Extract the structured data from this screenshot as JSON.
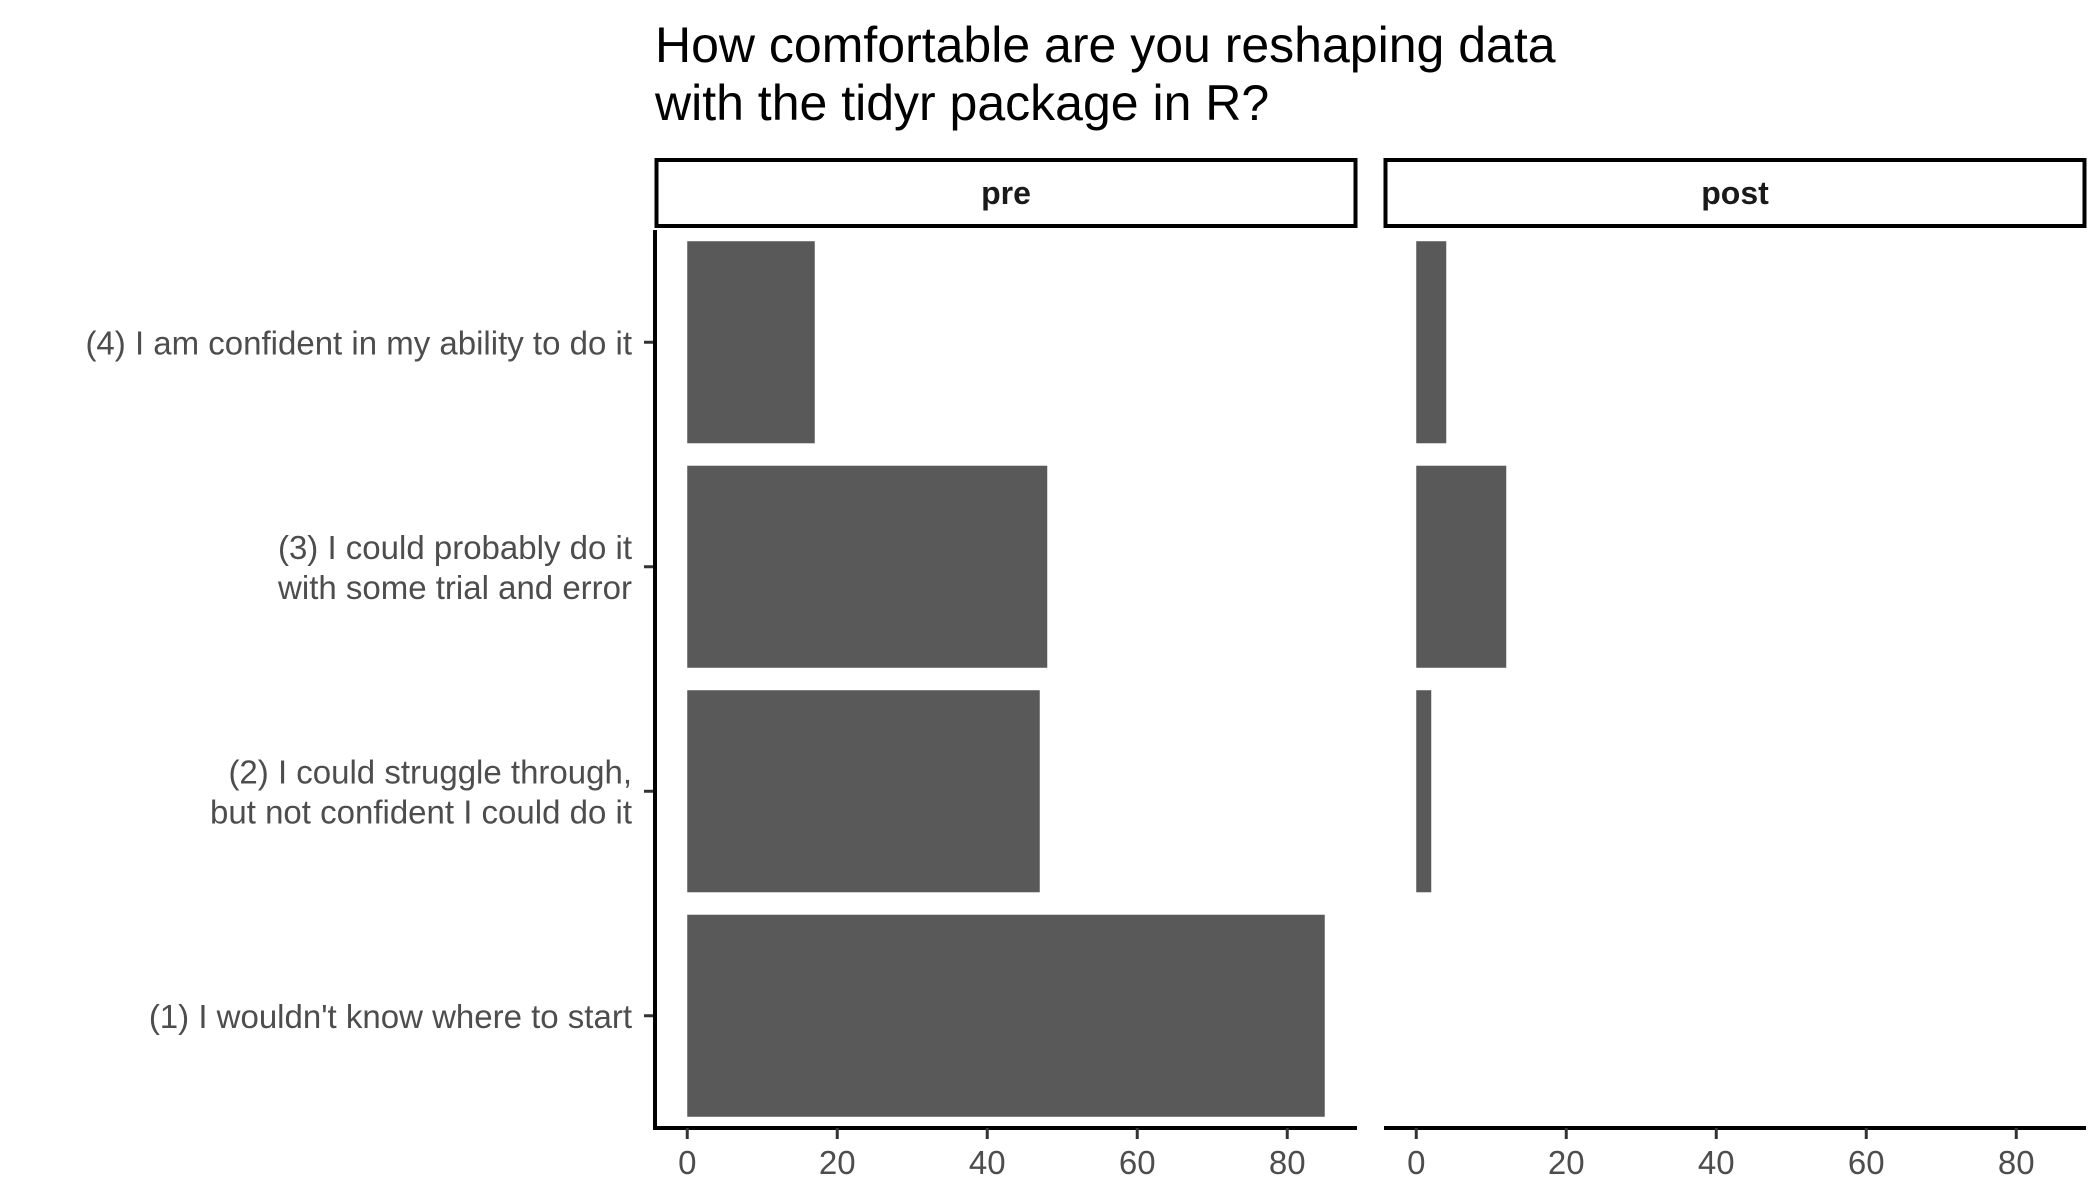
{
  "chart_data": {
    "type": "bar",
    "orientation": "horizontal",
    "title": [
      "How comfortable are you reshaping data",
      "with the tidyr package in R?"
    ],
    "xlabel": "",
    "ylabel": "",
    "grid": false,
    "categories": [
      [
        "(4) I am confident in my ability to do it"
      ],
      [
        "(3) I could probably do it",
        "with some trial and error"
      ],
      [
        "(2) I could struggle through,",
        "but not confident I could do it"
      ],
      [
        "(1) I wouldn't know where to start"
      ]
    ],
    "facets": [
      {
        "name": "pre",
        "values": [
          17,
          48,
          47,
          85
        ]
      },
      {
        "name": "post",
        "values": [
          4,
          12,
          2,
          0
        ]
      }
    ],
    "xlim": [
      -4.3,
      89.3
    ],
    "xticks": [
      0,
      20,
      40,
      60,
      80
    ],
    "bar_color": "#595959"
  }
}
